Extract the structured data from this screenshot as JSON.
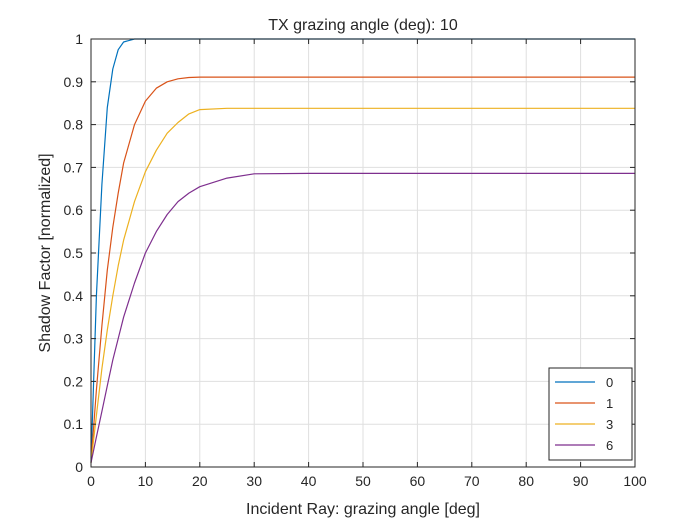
{
  "chart_data": {
    "type": "line",
    "title": "TX grazing angle (deg): 10",
    "xlabel": "Incident Ray: grazing angle [deg]",
    "ylabel": "Shadow Factor [normalized]",
    "xlim": [
      0,
      100
    ],
    "ylim": [
      0,
      1
    ],
    "xticks": [
      0,
      10,
      20,
      30,
      40,
      50,
      60,
      70,
      80,
      90,
      100
    ],
    "yticks": [
      0,
      0.1,
      0.2,
      0.3,
      0.4,
      0.5,
      0.6,
      0.7,
      0.8,
      0.9,
      1
    ],
    "grid": true,
    "legend_location": "bottom-right",
    "x": [
      0,
      1,
      2,
      3,
      4,
      5,
      6,
      8,
      10,
      12,
      14,
      16,
      18,
      20,
      25,
      30,
      40,
      50,
      60,
      70,
      80,
      90,
      100
    ],
    "series": [
      {
        "name": "0",
        "color": "#0072BD",
        "values": [
          0.01,
          0.4,
          0.66,
          0.84,
          0.93,
          0.975,
          0.993,
          1.0,
          1.0,
          1.0,
          1.0,
          1.0,
          1.0,
          1.0,
          1.0,
          1.0,
          1.0,
          1.0,
          1.0,
          1.0,
          1.0,
          1.0,
          1.0
        ]
      },
      {
        "name": "1",
        "color": "#D95319",
        "values": [
          0.01,
          0.18,
          0.33,
          0.46,
          0.56,
          0.64,
          0.71,
          0.8,
          0.855,
          0.885,
          0.9,
          0.907,
          0.91,
          0.911,
          0.911,
          0.911,
          0.911,
          0.911,
          0.911,
          0.911,
          0.911,
          0.911,
          0.911
        ]
      },
      {
        "name": "3",
        "color": "#EDB120",
        "values": [
          0.01,
          0.12,
          0.23,
          0.32,
          0.4,
          0.47,
          0.53,
          0.62,
          0.69,
          0.74,
          0.78,
          0.805,
          0.825,
          0.835,
          0.838,
          0.838,
          0.838,
          0.838,
          0.838,
          0.838,
          0.838,
          0.838,
          0.838
        ]
      },
      {
        "name": "6",
        "color": "#7E2F8E",
        "values": [
          0.01,
          0.07,
          0.13,
          0.19,
          0.25,
          0.3,
          0.35,
          0.43,
          0.5,
          0.55,
          0.59,
          0.62,
          0.64,
          0.655,
          0.675,
          0.685,
          0.686,
          0.686,
          0.686,
          0.686,
          0.686,
          0.686,
          0.686
        ]
      }
    ]
  }
}
